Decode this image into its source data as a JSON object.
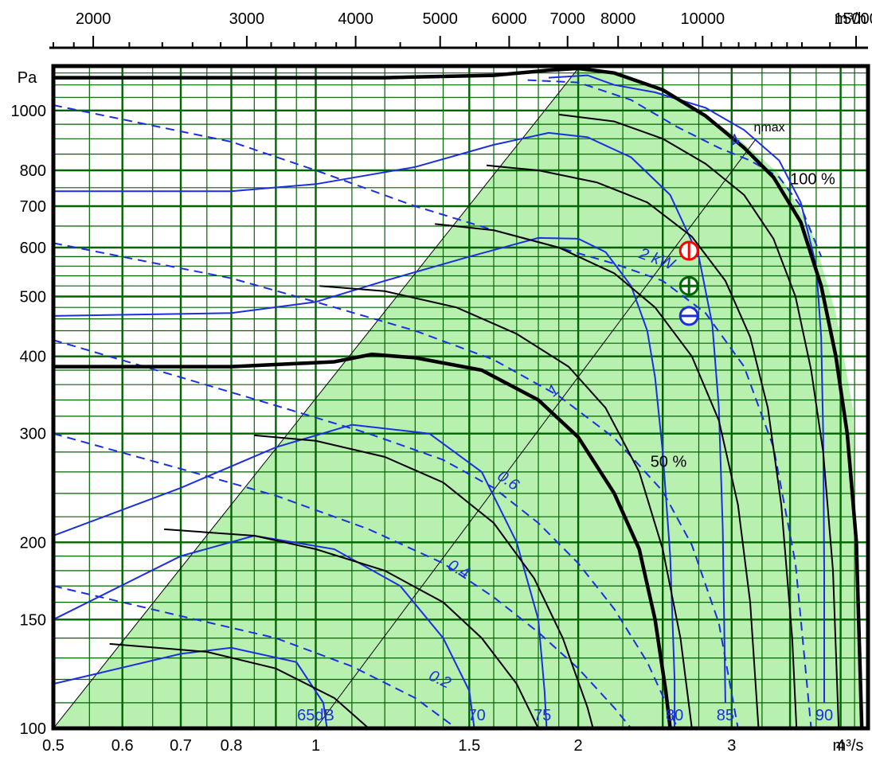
{
  "chart_data": {
    "type": "line",
    "title": "",
    "top_axis": {
      "label": "m³/h",
      "ticks": [
        {
          "label": "2000",
          "value": 2000
        },
        {
          "label": "3000",
          "value": 3000
        },
        {
          "label": "4000",
          "value": 4000
        },
        {
          "label": "5000",
          "value": 5000
        },
        {
          "label": "6000",
          "value": 6000
        },
        {
          "label": "7000",
          "value": 7000
        },
        {
          "label": "8000",
          "value": 8000
        },
        {
          "label": "10000",
          "value": 10000
        },
        {
          "label": "15000",
          "value": 15000
        }
      ]
    },
    "x_axis": {
      "label": "m³/s",
      "scale": "log",
      "range": [
        0.5,
        4.3
      ],
      "ticks": [
        {
          "label": "0.5",
          "value": 0.5
        },
        {
          "label": "0.6",
          "value": 0.6
        },
        {
          "label": "0.7",
          "value": 0.7
        },
        {
          "label": "0.8",
          "value": 0.8
        },
        {
          "label": "1",
          "value": 1
        },
        {
          "label": "1.5",
          "value": 1.5
        },
        {
          "label": "2",
          "value": 2
        },
        {
          "label": "3",
          "value": 3
        },
        {
          "label": "4",
          "value": 4
        }
      ]
    },
    "y_axis": {
      "label": "Pa",
      "scale": "log",
      "range": [
        100,
        1180
      ],
      "ticks": [
        {
          "label": "100",
          "value": 100
        },
        {
          "label": "150",
          "value": 150
        },
        {
          "label": "200",
          "value": 200
        },
        {
          "label": "300",
          "value": 300
        },
        {
          "label": "400",
          "value": 400
        },
        {
          "label": "500",
          "value": 500
        },
        {
          "label": "600",
          "value": 600
        },
        {
          "label": "700",
          "value": 700
        },
        {
          "label": "800",
          "value": 800
        },
        {
          "label": "1000",
          "value": 1000
        }
      ]
    },
    "grid": true,
    "colors": {
      "grid": "#006400",
      "region": "#b8f0b0",
      "pressure_curve": "#000000",
      "power_curve": "#1c2fe0",
      "operating_point_1": "#ff0000",
      "operating_point_2": "#006400",
      "operating_point_3": "#1c2fe0"
    },
    "regions": [
      {
        "name": "operating-range",
        "points": [
          [
            0.5,
            100
          ],
          [
            2.0,
            1170
          ],
          [
            2.25,
            1140
          ],
          [
            2.6,
            1040
          ],
          [
            3.0,
            920
          ],
          [
            3.4,
            790
          ],
          [
            3.7,
            640
          ],
          [
            3.95,
            470
          ],
          [
            4.13,
            330
          ],
          [
            4.23,
            100
          ]
        ]
      }
    ],
    "fan_curves": [
      {
        "name": "pressure-curve-max",
        "style": "bold",
        "points": [
          [
            0.5,
            1130
          ],
          [
            0.8,
            1130
          ],
          [
            1.2,
            1130
          ],
          [
            1.6,
            1140
          ],
          [
            1.85,
            1162
          ],
          [
            2.0,
            1170
          ],
          [
            2.2,
            1150
          ],
          [
            2.5,
            1080
          ],
          [
            2.8,
            980
          ],
          [
            3.1,
            870
          ],
          [
            3.35,
            780
          ],
          [
            3.6,
            660
          ],
          [
            3.8,
            520
          ],
          [
            3.95,
            400
          ],
          [
            4.07,
            300
          ],
          [
            4.17,
            200
          ],
          [
            4.23,
            100
          ]
        ]
      },
      {
        "name": "pressure-curve-2",
        "style": "normal",
        "points": [
          [
            1.9,
            985
          ],
          [
            2.2,
            960
          ],
          [
            2.5,
            900
          ],
          [
            2.8,
            820
          ],
          [
            3.1,
            730
          ],
          [
            3.35,
            620
          ],
          [
            3.55,
            500
          ],
          [
            3.7,
            380
          ],
          [
            3.82,
            280
          ],
          [
            3.92,
            180
          ],
          [
            3.98,
            100
          ]
        ]
      },
      {
        "name": "pressure-curve-3",
        "style": "normal",
        "points": [
          [
            1.57,
            815
          ],
          [
            1.8,
            800
          ],
          [
            2.1,
            765
          ],
          [
            2.4,
            710
          ],
          [
            2.7,
            625
          ],
          [
            2.95,
            530
          ],
          [
            3.15,
            430
          ],
          [
            3.3,
            330
          ],
          [
            3.42,
            230
          ],
          [
            3.52,
            140
          ],
          [
            3.56,
            100
          ]
        ]
      },
      {
        "name": "pressure-curve-4",
        "style": "normal",
        "points": [
          [
            1.37,
            655
          ],
          [
            1.6,
            640
          ],
          [
            1.9,
            600
          ],
          [
            2.2,
            545
          ],
          [
            2.45,
            480
          ],
          [
            2.7,
            400
          ],
          [
            2.9,
            315
          ],
          [
            3.05,
            230
          ],
          [
            3.15,
            160
          ],
          [
            3.22,
            100
          ]
        ]
      },
      {
        "name": "pressure-curve-50pct",
        "style": "bold",
        "points": [
          [
            0.5,
            385
          ],
          [
            0.8,
            385
          ],
          [
            1.05,
            392
          ],
          [
            1.16,
            403
          ],
          [
            1.3,
            398
          ],
          [
            1.55,
            380
          ],
          [
            1.8,
            340
          ],
          [
            2.0,
            296
          ],
          [
            2.2,
            240
          ],
          [
            2.35,
            195
          ],
          [
            2.45,
            150
          ],
          [
            2.52,
            115
          ],
          [
            2.55,
            100
          ]
        ]
      },
      {
        "name": "pressure-curve-6",
        "style": "normal",
        "points": [
          [
            1.01,
            520
          ],
          [
            1.2,
            510
          ],
          [
            1.45,
            480
          ],
          [
            1.7,
            435
          ],
          [
            1.95,
            385
          ],
          [
            2.15,
            330
          ],
          [
            2.35,
            260
          ],
          [
            2.5,
            195
          ],
          [
            2.62,
            140
          ],
          [
            2.7,
            100
          ]
        ]
      },
      {
        "name": "pressure-curve-7",
        "style": "normal",
        "points": [
          [
            0.85,
            298
          ],
          [
            1.0,
            292
          ],
          [
            1.2,
            275
          ],
          [
            1.4,
            250
          ],
          [
            1.6,
            215
          ],
          [
            1.78,
            175
          ],
          [
            1.92,
            140
          ],
          [
            2.05,
            108
          ],
          [
            2.08,
            100
          ]
        ]
      },
      {
        "name": "pressure-curve-8",
        "style": "normal",
        "points": [
          [
            0.67,
            210
          ],
          [
            0.85,
            205
          ],
          [
            1.0,
            195
          ],
          [
            1.2,
            180
          ],
          [
            1.4,
            160
          ],
          [
            1.55,
            140
          ],
          [
            1.7,
            118
          ],
          [
            1.8,
            100
          ]
        ]
      },
      {
        "name": "pressure-curve-9",
        "style": "normal",
        "points": [
          [
            0.58,
            137
          ],
          [
            0.75,
            133
          ],
          [
            0.9,
            125
          ],
          [
            1.05,
            112
          ],
          [
            1.15,
            100
          ]
        ]
      }
    ],
    "power_curves": [
      {
        "label": "0.2",
        "points": [
          [
            0.5,
            170
          ],
          [
            0.7,
            152
          ],
          [
            0.9,
            140
          ],
          [
            1.1,
            126
          ],
          [
            1.3,
            112
          ],
          [
            1.45,
            100
          ]
        ]
      },
      {
        "label": "0.4",
        "points": [
          [
            0.5,
            300
          ],
          [
            0.7,
            263
          ],
          [
            0.9,
            238
          ],
          [
            1.15,
            210
          ],
          [
            1.4,
            185
          ],
          [
            1.6,
            163
          ],
          [
            1.8,
            143
          ],
          [
            2.0,
            125
          ],
          [
            2.2,
            108
          ],
          [
            2.3,
            100
          ]
        ]
      },
      {
        "label": "0.6",
        "points": [
          [
            0.5,
            425
          ],
          [
            0.7,
            370
          ],
          [
            0.9,
            333
          ],
          [
            1.15,
            300
          ],
          [
            1.4,
            272
          ],
          [
            1.6,
            245
          ],
          [
            1.8,
            215
          ],
          [
            2.0,
            185
          ],
          [
            2.2,
            156
          ],
          [
            2.4,
            128
          ],
          [
            2.6,
            100
          ]
        ]
      },
      {
        "label": "1",
        "points": [
          [
            0.5,
            610
          ],
          [
            0.8,
            535
          ],
          [
            1.0,
            490
          ],
          [
            1.3,
            440
          ],
          [
            1.6,
            395
          ],
          [
            1.9,
            345
          ],
          [
            2.2,
            295
          ],
          [
            2.5,
            242
          ],
          [
            2.7,
            198
          ],
          [
            2.9,
            148
          ],
          [
            3.05,
            100
          ]
        ]
      },
      {
        "label": "2 kW",
        "points": [
          [
            0.5,
            1020
          ],
          [
            0.8,
            890
          ],
          [
            1.0,
            800
          ],
          [
            1.3,
            700
          ],
          [
            1.6,
            640
          ],
          [
            1.9,
            600
          ],
          [
            2.2,
            565
          ],
          [
            2.5,
            530
          ],
          [
            2.8,
            470
          ],
          [
            3.1,
            385
          ],
          [
            3.35,
            285
          ],
          [
            3.55,
            185
          ],
          [
            3.7,
            100
          ]
        ]
      },
      {
        "label": "4",
        "points": [
          [
            1.75,
            1120
          ],
          [
            2.0,
            1110
          ],
          [
            2.3,
            1040
          ],
          [
            2.6,
            940
          ],
          [
            2.9,
            870
          ],
          [
            3.15,
            830
          ],
          [
            3.4,
            780
          ],
          [
            3.6,
            700
          ],
          [
            3.8,
            580
          ]
        ]
      }
    ],
    "sound_curves": [
      {
        "label": "65dB",
        "points": [
          [
            0.5,
            118
          ],
          [
            0.7,
            132
          ],
          [
            0.8,
            135
          ],
          [
            0.95,
            128
          ],
          [
            1.02,
            110
          ],
          [
            1.03,
            100
          ]
        ]
      },
      {
        "label": "70",
        "points": [
          [
            0.5,
            150
          ],
          [
            0.7,
            190
          ],
          [
            0.85,
            205
          ],
          [
            1.05,
            195
          ],
          [
            1.25,
            170
          ],
          [
            1.4,
            140
          ],
          [
            1.5,
            115
          ],
          [
            1.52,
            100
          ]
        ]
      },
      {
        "label": "75",
        "points": [
          [
            0.5,
            205
          ],
          [
            0.7,
            245
          ],
          [
            0.9,
            285
          ],
          [
            1.1,
            310
          ],
          [
            1.35,
            300
          ],
          [
            1.55,
            260
          ],
          [
            1.7,
            200
          ],
          [
            1.8,
            150
          ],
          [
            1.83,
            115
          ],
          [
            1.84,
            100
          ]
        ]
      },
      {
        "label": "80",
        "points": [
          [
            0.5,
            465
          ],
          [
            0.8,
            470
          ],
          [
            1.0,
            490
          ],
          [
            1.2,
            530
          ],
          [
            1.5,
            580
          ],
          [
            1.8,
            622
          ],
          [
            2.0,
            620
          ],
          [
            2.15,
            590
          ],
          [
            2.3,
            520
          ],
          [
            2.4,
            440
          ],
          [
            2.45,
            370
          ],
          [
            2.5,
            280
          ],
          [
            2.55,
            190
          ],
          [
            2.58,
            120
          ],
          [
            2.58,
            100
          ]
        ]
      },
      {
        "label": "85",
        "points": [
          [
            0.5,
            740
          ],
          [
            0.8,
            740
          ],
          [
            1.0,
            760
          ],
          [
            1.3,
            810
          ],
          [
            1.6,
            880
          ],
          [
            1.85,
            920
          ],
          [
            2.05,
            905
          ],
          [
            2.3,
            840
          ],
          [
            2.55,
            730
          ],
          [
            2.75,
            580
          ],
          [
            2.85,
            450
          ],
          [
            2.9,
            330
          ],
          [
            2.93,
            210
          ],
          [
            2.95,
            110
          ]
        ]
      },
      {
        "label": "90",
        "points": [
          [
            1.85,
            1130
          ],
          [
            2.05,
            1140
          ],
          [
            2.2,
            1100
          ],
          [
            2.45,
            1070
          ],
          [
            2.8,
            1010
          ],
          [
            3.1,
            930
          ],
          [
            3.4,
            830
          ],
          [
            3.6,
            710
          ],
          [
            3.75,
            560
          ],
          [
            3.8,
            430
          ],
          [
            3.82,
            300
          ],
          [
            3.83,
            180
          ],
          [
            3.83,
            110
          ]
        ]
      }
    ],
    "guide_lines": [
      {
        "name": "system-line-left",
        "points": [
          [
            0.5,
            100
          ],
          [
            2.0,
            1170
          ]
        ]
      },
      {
        "name": "system-line-eta-max",
        "points": [
          [
            1.0,
            100
          ],
          [
            3.2,
            900
          ]
        ]
      }
    ],
    "operating_points": [
      {
        "name": "point-red",
        "x": 2.68,
        "y": 593,
        "symbol": "vertical-bar"
      },
      {
        "name": "point-green",
        "x": 2.68,
        "y": 520,
        "symbol": "plus"
      },
      {
        "name": "point-blue",
        "x": 2.68,
        "y": 465,
        "symbol": "minus"
      }
    ],
    "annotations": [
      {
        "text": "100 %",
        "x": 3.5,
        "y": 760
      },
      {
        "text": "50 %",
        "x": 2.42,
        "y": 265
      },
      {
        "text": "ηmax",
        "x": 3.18,
        "y": 925
      }
    ]
  }
}
